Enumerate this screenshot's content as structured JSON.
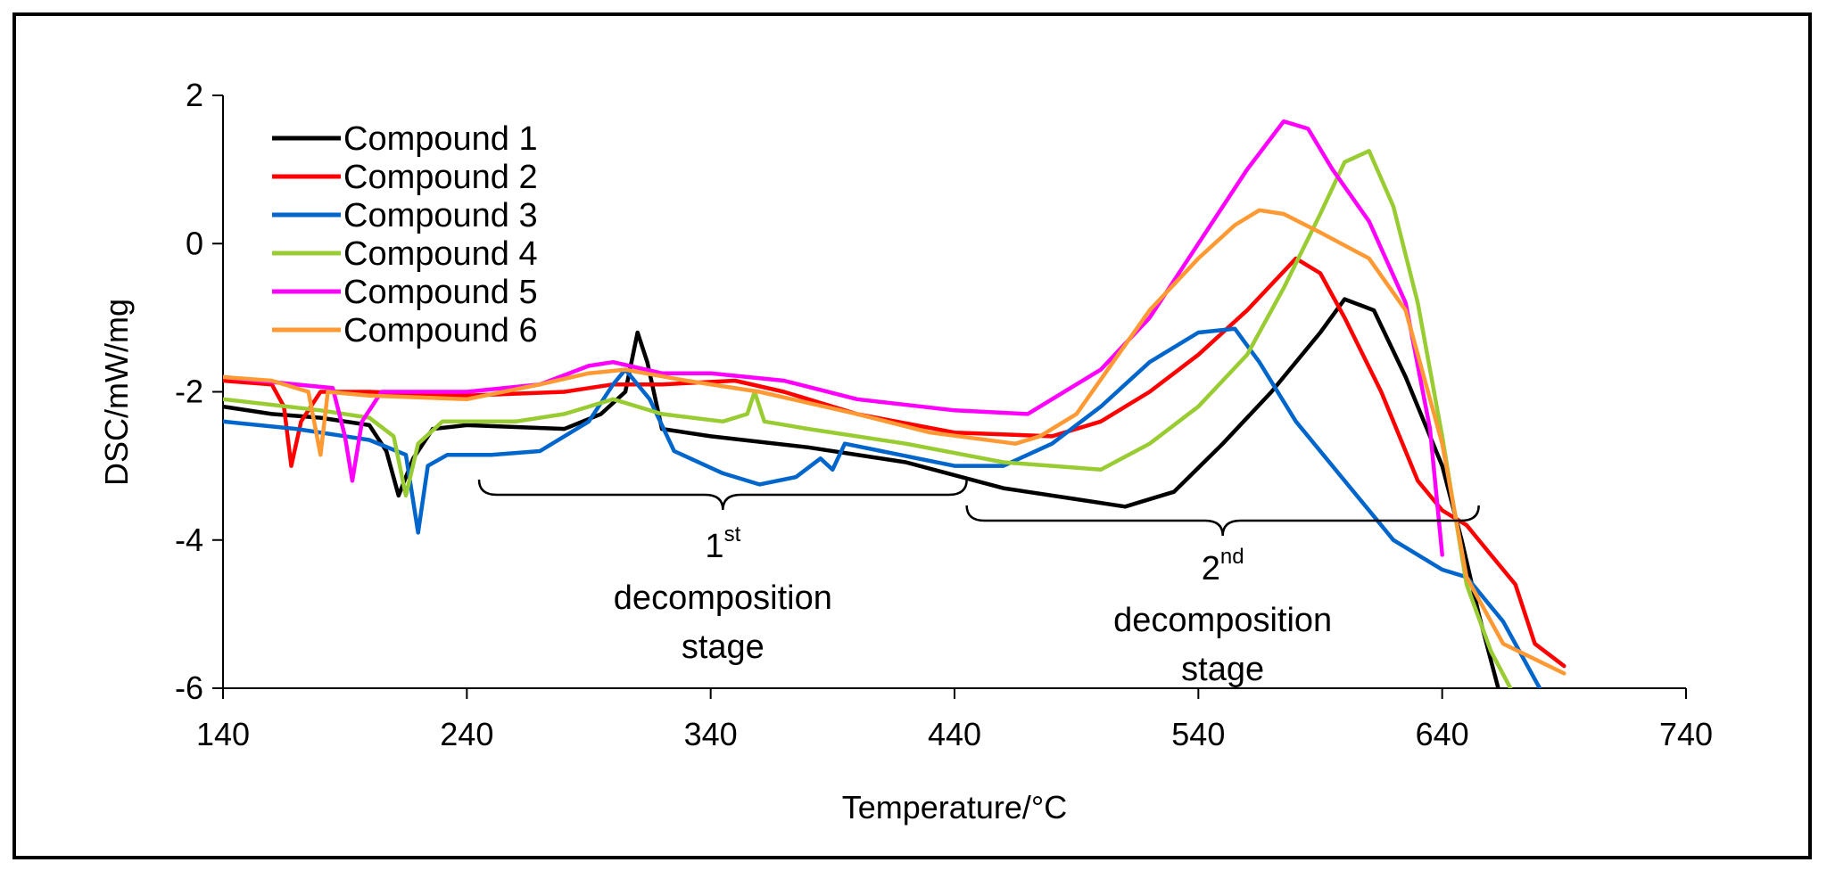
{
  "chart_data": {
    "type": "line",
    "title": "",
    "xlabel": "Temperature/°C",
    "ylabel": "DSC/mW/mg",
    "xlim": [
      140,
      740
    ],
    "ylim": [
      -6,
      2
    ],
    "xticks": [
      "140",
      "240",
      "340",
      "440",
      "540",
      "640",
      "740"
    ],
    "yticks": [
      "2",
      "0",
      "-2",
      "-4",
      "-6"
    ],
    "grid": false,
    "legend_position": "top-left",
    "series": [
      {
        "name": "Compound 1",
        "color": "#000000",
        "points": [
          [
            140,
            -2.2
          ],
          [
            160,
            -2.3
          ],
          [
            180,
            -2.35
          ],
          [
            200,
            -2.45
          ],
          [
            207,
            -2.8
          ],
          [
            212,
            -3.4
          ],
          [
            218,
            -2.9
          ],
          [
            226,
            -2.5
          ],
          [
            240,
            -2.45
          ],
          [
            280,
            -2.5
          ],
          [
            295,
            -2.3
          ],
          [
            305,
            -2.0
          ],
          [
            310,
            -1.2
          ],
          [
            314,
            -1.6
          ],
          [
            320,
            -2.5
          ],
          [
            340,
            -2.6
          ],
          [
            380,
            -2.75
          ],
          [
            420,
            -2.95
          ],
          [
            460,
            -3.3
          ],
          [
            490,
            -3.45
          ],
          [
            510,
            -3.55
          ],
          [
            530,
            -3.35
          ],
          [
            550,
            -2.7
          ],
          [
            570,
            -2.0
          ],
          [
            590,
            -1.2
          ],
          [
            600,
            -0.75
          ],
          [
            612,
            -0.9
          ],
          [
            625,
            -1.8
          ],
          [
            640,
            -3.0
          ],
          [
            648,
            -4.0
          ],
          [
            655,
            -5.0
          ],
          [
            663,
            -6.0
          ]
        ]
      },
      {
        "name": "Compound 2",
        "color": "#ff0000",
        "points": [
          [
            140,
            -1.85
          ],
          [
            160,
            -1.9
          ],
          [
            165,
            -2.2
          ],
          [
            168,
            -3.0
          ],
          [
            172,
            -2.4
          ],
          [
            180,
            -2.0
          ],
          [
            200,
            -2.0
          ],
          [
            240,
            -2.05
          ],
          [
            280,
            -2.0
          ],
          [
            300,
            -1.9
          ],
          [
            320,
            -1.9
          ],
          [
            350,
            -1.85
          ],
          [
            370,
            -2.0
          ],
          [
            400,
            -2.3
          ],
          [
            440,
            -2.55
          ],
          [
            480,
            -2.6
          ],
          [
            500,
            -2.4
          ],
          [
            520,
            -2.0
          ],
          [
            540,
            -1.5
          ],
          [
            560,
            -0.9
          ],
          [
            580,
            -0.2
          ],
          [
            590,
            -0.4
          ],
          [
            600,
            -1.0
          ],
          [
            615,
            -2.0
          ],
          [
            630,
            -3.2
          ],
          [
            640,
            -3.6
          ],
          [
            650,
            -3.8
          ],
          [
            660,
            -4.2
          ],
          [
            670,
            -4.6
          ],
          [
            678,
            -5.4
          ],
          [
            690,
            -5.7
          ]
        ]
      },
      {
        "name": "Compound 3",
        "color": "#0066cc",
        "points": [
          [
            140,
            -2.4
          ],
          [
            170,
            -2.5
          ],
          [
            200,
            -2.65
          ],
          [
            215,
            -2.85
          ],
          [
            220,
            -3.9
          ],
          [
            224,
            -3.0
          ],
          [
            232,
            -2.85
          ],
          [
            250,
            -2.85
          ],
          [
            270,
            -2.8
          ],
          [
            290,
            -2.4
          ],
          [
            300,
            -1.9
          ],
          [
            305,
            -1.7
          ],
          [
            315,
            -2.1
          ],
          [
            325,
            -2.8
          ],
          [
            345,
            -3.1
          ],
          [
            360,
            -3.25
          ],
          [
            375,
            -3.15
          ],
          [
            385,
            -2.9
          ],
          [
            390,
            -3.05
          ],
          [
            395,
            -2.7
          ],
          [
            410,
            -2.8
          ],
          [
            440,
            -3.0
          ],
          [
            460,
            -3.0
          ],
          [
            480,
            -2.7
          ],
          [
            500,
            -2.2
          ],
          [
            520,
            -1.6
          ],
          [
            540,
            -1.2
          ],
          [
            555,
            -1.15
          ],
          [
            565,
            -1.6
          ],
          [
            580,
            -2.4
          ],
          [
            600,
            -3.2
          ],
          [
            620,
            -4.0
          ],
          [
            640,
            -4.4
          ],
          [
            650,
            -4.5
          ],
          [
            665,
            -5.1
          ],
          [
            680,
            -6.0
          ]
        ]
      },
      {
        "name": "Compound 4",
        "color": "#99cc33",
        "points": [
          [
            140,
            -2.1
          ],
          [
            180,
            -2.25
          ],
          [
            200,
            -2.35
          ],
          [
            210,
            -2.6
          ],
          [
            215,
            -3.4
          ],
          [
            220,
            -2.7
          ],
          [
            230,
            -2.4
          ],
          [
            260,
            -2.4
          ],
          [
            280,
            -2.3
          ],
          [
            300,
            -2.1
          ],
          [
            320,
            -2.3
          ],
          [
            345,
            -2.4
          ],
          [
            355,
            -2.3
          ],
          [
            358,
            -2.0
          ],
          [
            362,
            -2.4
          ],
          [
            380,
            -2.5
          ],
          [
            420,
            -2.7
          ],
          [
            460,
            -2.95
          ],
          [
            480,
            -3.0
          ],
          [
            500,
            -3.05
          ],
          [
            520,
            -2.7
          ],
          [
            540,
            -2.2
          ],
          [
            560,
            -1.5
          ],
          [
            575,
            -0.6
          ],
          [
            590,
            0.4
          ],
          [
            600,
            1.1
          ],
          [
            610,
            1.25
          ],
          [
            620,
            0.5
          ],
          [
            630,
            -0.8
          ],
          [
            640,
            -2.6
          ],
          [
            645,
            -3.6
          ],
          [
            650,
            -4.6
          ],
          [
            660,
            -5.5
          ],
          [
            668,
            -6.0
          ]
        ]
      },
      {
        "name": "Compound 5",
        "color": "#ff00ff",
        "points": [
          [
            140,
            -1.8
          ],
          [
            170,
            -1.9
          ],
          [
            185,
            -1.95
          ],
          [
            190,
            -2.6
          ],
          [
            193,
            -3.2
          ],
          [
            197,
            -2.4
          ],
          [
            205,
            -2.0
          ],
          [
            240,
            -2.0
          ],
          [
            270,
            -1.9
          ],
          [
            290,
            -1.65
          ],
          [
            300,
            -1.6
          ],
          [
            320,
            -1.75
          ],
          [
            340,
            -1.75
          ],
          [
            370,
            -1.85
          ],
          [
            400,
            -2.1
          ],
          [
            440,
            -2.25
          ],
          [
            470,
            -2.3
          ],
          [
            480,
            -2.1
          ],
          [
            500,
            -1.7
          ],
          [
            520,
            -1.0
          ],
          [
            540,
            0.0
          ],
          [
            560,
            1.0
          ],
          [
            575,
            1.65
          ],
          [
            585,
            1.55
          ],
          [
            595,
            1.0
          ],
          [
            610,
            0.3
          ],
          [
            625,
            -0.8
          ],
          [
            635,
            -2.5
          ],
          [
            640,
            -4.2
          ]
        ]
      },
      {
        "name": "Compound 6",
        "color": "#ff9933",
        "points": [
          [
            140,
            -1.8
          ],
          [
            160,
            -1.85
          ],
          [
            175,
            -2.0
          ],
          [
            180,
            -2.85
          ],
          [
            183,
            -2.0
          ],
          [
            200,
            -2.05
          ],
          [
            240,
            -2.1
          ],
          [
            270,
            -1.9
          ],
          [
            290,
            -1.75
          ],
          [
            305,
            -1.7
          ],
          [
            330,
            -1.85
          ],
          [
            360,
            -2.0
          ],
          [
            400,
            -2.3
          ],
          [
            430,
            -2.55
          ],
          [
            465,
            -2.7
          ],
          [
            475,
            -2.6
          ],
          [
            490,
            -2.3
          ],
          [
            505,
            -1.6
          ],
          [
            520,
            -0.9
          ],
          [
            540,
            -0.2
          ],
          [
            555,
            0.25
          ],
          [
            565,
            0.45
          ],
          [
            575,
            0.4
          ],
          [
            590,
            0.15
          ],
          [
            610,
            -0.2
          ],
          [
            625,
            -0.9
          ],
          [
            640,
            -2.7
          ],
          [
            650,
            -4.5
          ],
          [
            665,
            -5.4
          ],
          [
            690,
            -5.8
          ]
        ]
      }
    ],
    "annotations": [
      {
        "id": "first",
        "sup_number": "1",
        "sup_suffix": "st",
        "line2": "decomposition",
        "line3": "stage",
        "x_from": 245,
        "x_to": 445
      },
      {
        "id": "second",
        "sup_number": "2",
        "sup_suffix": "nd",
        "line2": "decomposition",
        "line3": "stage",
        "x_from": 445,
        "x_to": 655
      }
    ]
  }
}
